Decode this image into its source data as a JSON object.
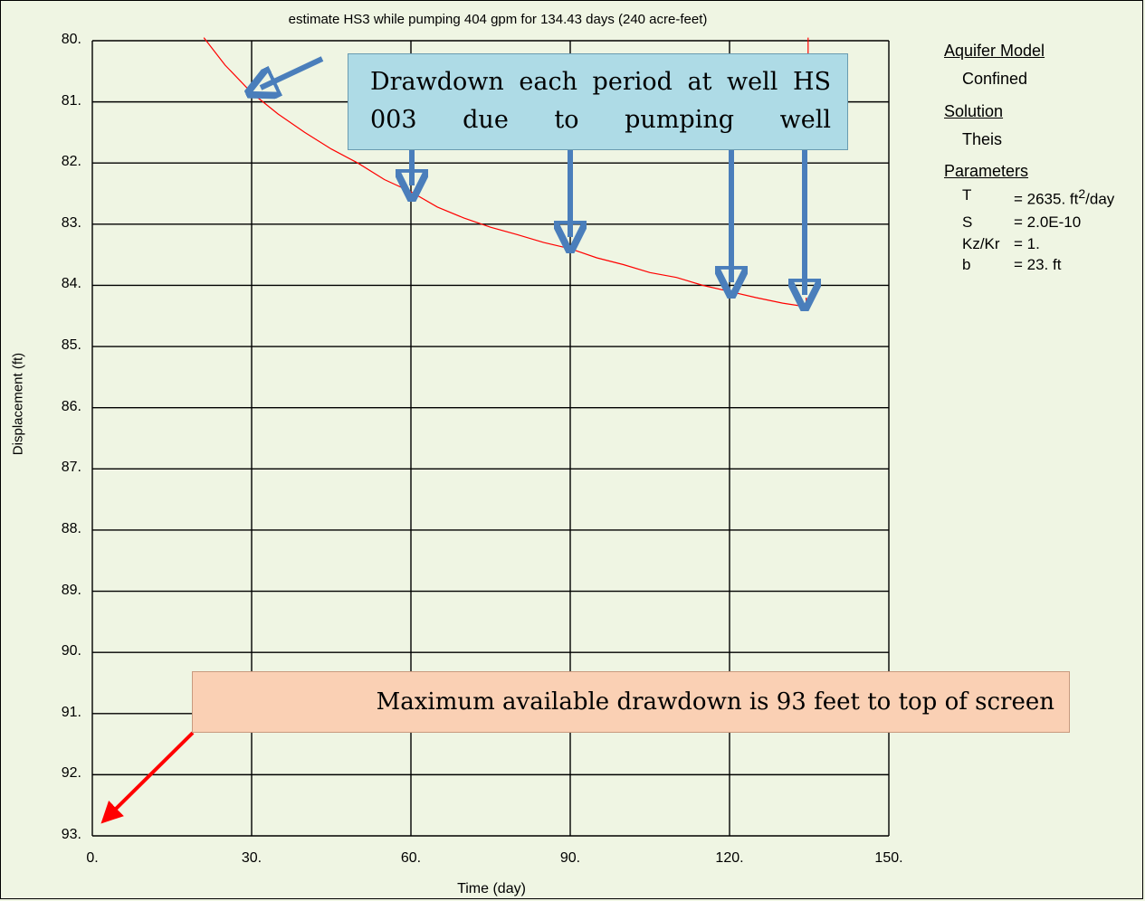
{
  "chart_data": {
    "type": "line",
    "title": "estimate HS3 while pumping 404 gpm for 134.43 days (240 acre-feet)",
    "xlabel": "Time (day)",
    "ylabel": "Displacement (ft)",
    "xlim": [
      0,
      150
    ],
    "ylim": [
      80,
      93
    ],
    "y_inverted": true,
    "grid": true,
    "x_ticks": [
      "0.",
      "30.",
      "60.",
      "90.",
      "120.",
      "150."
    ],
    "y_ticks": [
      "80.",
      "81.",
      "82.",
      "83.",
      "84.",
      "85.",
      "86.",
      "87.",
      "88.",
      "89.",
      "90.",
      "91.",
      "92.",
      "93."
    ],
    "series": [
      {
        "color": "#ff0000",
        "points": [
          [
            21,
            79.95
          ],
          [
            25,
            80.4
          ],
          [
            30,
            80.85
          ],
          [
            35,
            81.2
          ],
          [
            40,
            81.5
          ],
          [
            45,
            81.77
          ],
          [
            50,
            82.0
          ],
          [
            55,
            82.27
          ],
          [
            60,
            82.47
          ],
          [
            65,
            82.72
          ],
          [
            70,
            82.9
          ],
          [
            75,
            83.05
          ],
          [
            80,
            83.17
          ],
          [
            85,
            83.3
          ],
          [
            90,
            83.4
          ],
          [
            95,
            83.55
          ],
          [
            100,
            83.66
          ],
          [
            105,
            83.79
          ],
          [
            110,
            83.87
          ],
          [
            115,
            84.0
          ],
          [
            120,
            84.1
          ],
          [
            125,
            84.2
          ],
          [
            130,
            84.29
          ],
          [
            134.43,
            84.35
          ]
        ]
      },
      {
        "color": "#ff0000",
        "points": [
          [
            134.43,
            84.35
          ],
          [
            134.43,
            84.2
          ]
        ]
      },
      {
        "color": "#ff0000",
        "points": [
          [
            134.8,
            79.95
          ],
          [
            134.8,
            80.6
          ]
        ]
      }
    ]
  },
  "annotations": {
    "blue_callout": "Drawdown each period at well HS 003 due to pumping well",
    "orange_callout": "Maximum available drawdown is 93 feet to top of screen"
  },
  "legend": {
    "aquifer_model_heading": "Aquifer Model",
    "aquifer_model_value": "Confined",
    "solution_heading": "Solution",
    "solution_value": "Theis",
    "parameters_heading": "Parameters",
    "params": [
      {
        "name": "T",
        "value": "= 2635. ft",
        "sup": "2",
        "suffix": "/day"
      },
      {
        "name": "S",
        "value": "= 2.0E-10"
      },
      {
        "name": "Kz/Kr",
        "value": "= 1."
      },
      {
        "name": "b",
        "value": "= 23. ft"
      }
    ]
  },
  "colors": {
    "background": "#eff5e3",
    "curve": "#ff0000",
    "blue_arrow": "#4a7ebb",
    "red_arrow": "#ff0000"
  }
}
